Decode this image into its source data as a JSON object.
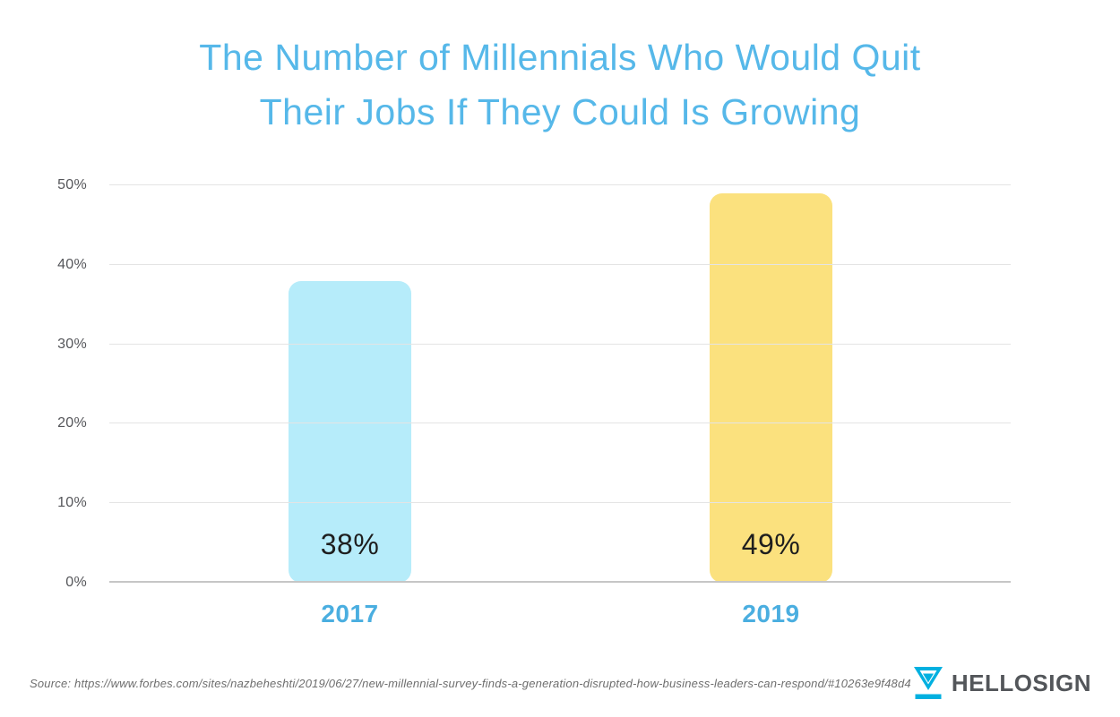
{
  "header": {
    "title_line1": "The Number of Millennials Who Would Quit",
    "title_line2": "Their Jobs If They Could Is Growing",
    "title_color": "#56b8e9"
  },
  "chart_data": {
    "type": "bar",
    "title": "The Number of Millennials Who Would Quit Their Jobs If They Could Is Growing",
    "categories": [
      "2017",
      "2019"
    ],
    "values": [
      38,
      49
    ],
    "value_labels": [
      "38%",
      "49%"
    ],
    "bar_colors": [
      "#b6ecfa",
      "#fbe17e"
    ],
    "category_label_color": "#4aaee0",
    "value_label_color": "#1e1e1e",
    "xlabel": "",
    "ylabel": "",
    "ylim": [
      0,
      50
    ],
    "y_ticks": [
      0,
      10,
      20,
      30,
      40,
      50
    ],
    "y_tick_labels": [
      "0%",
      "10%",
      "20%",
      "30%",
      "40%",
      "50%"
    ],
    "grid": "horizontal",
    "legend": "none"
  },
  "footer": {
    "source": "Source: https://www.forbes.com/sites/nazbeheshti/2019/06/27/new-millennial-survey-finds-a-generation-disrupted-how-business-leaders-can-respond/#10263e9f48d4",
    "brand": "HELLOSIGN",
    "brand_color": "#53565a",
    "logo_color": "#00b0e0"
  }
}
